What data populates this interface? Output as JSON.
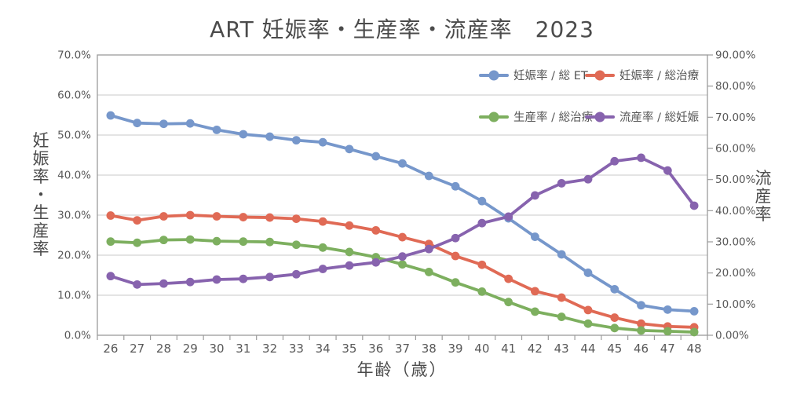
{
  "title": "ART 妊娠率・生産率・流産率　2023",
  "chart_data": {
    "type": "line",
    "title": "ART 妊娠率・生産率・流産率　2023",
    "xlabel": "年齢（歳）",
    "ylabel_left": "妊娠率・生産率",
    "ylabel_right": "流産率",
    "grid": true,
    "legend_position": "top-right-inside",
    "x": [
      26,
      27,
      28,
      29,
      30,
      31,
      32,
      33,
      34,
      35,
      36,
      37,
      38,
      39,
      40,
      41,
      42,
      43,
      44,
      45,
      46,
      47,
      48
    ],
    "x_tick_labels": [
      "26",
      "27",
      "28",
      "29",
      "30",
      "31",
      "32",
      "33",
      "34",
      "35",
      "36",
      "37",
      "38",
      "39",
      "40",
      "41",
      "42",
      "43",
      "44",
      "45",
      "46",
      "47",
      "48"
    ],
    "left_axis": {
      "min": 0,
      "max": 70,
      "tick_labels": [
        "0.0%",
        "10.0%",
        "20.0%",
        "30.0%",
        "40.0%",
        "50.0%",
        "60.0%",
        "70.0%"
      ]
    },
    "right_axis": {
      "min": 0,
      "max": 90,
      "tick_labels": [
        "0.00%",
        "10.00%",
        "20.00%",
        "30.00%",
        "40.00%",
        "50.00%",
        "60.00%",
        "70.00%",
        "80.00%",
        "90.00%"
      ]
    },
    "series": [
      {
        "name": "妊娠率 / 総 ET",
        "axis": "left",
        "color": "#7697CB",
        "values": [
          54.9,
          53.0,
          52.8,
          52.9,
          51.3,
          50.2,
          49.6,
          48.7,
          48.2,
          46.5,
          44.7,
          42.9,
          39.8,
          37.2,
          33.5,
          29.2,
          24.6,
          20.2,
          15.6,
          11.5,
          7.5,
          6.4,
          6.0
        ]
      },
      {
        "name": "妊娠率 / 総治療",
        "axis": "left",
        "color": "#E06A55",
        "values": [
          29.9,
          28.7,
          29.7,
          30.0,
          29.7,
          29.5,
          29.4,
          29.1,
          28.4,
          27.4,
          26.2,
          24.5,
          22.8,
          19.8,
          17.6,
          14.1,
          11.0,
          9.4,
          6.3,
          4.4,
          2.9,
          2.2,
          2.0
        ]
      },
      {
        "name": "生産率 / 総治療",
        "axis": "left",
        "color": "#7DAF5F",
        "values": [
          23.4,
          23.1,
          23.8,
          23.9,
          23.5,
          23.4,
          23.3,
          22.6,
          21.9,
          20.8,
          19.5,
          17.7,
          15.8,
          13.2,
          10.9,
          8.3,
          5.9,
          4.6,
          2.9,
          1.8,
          1.2,
          1.0,
          0.8
        ]
      },
      {
        "name": "流産率 / 総妊娠",
        "axis": "right",
        "color": "#8763AE",
        "values": [
          19.0,
          16.3,
          16.6,
          17.1,
          17.9,
          18.1,
          18.7,
          19.6,
          21.3,
          22.4,
          23.4,
          25.3,
          27.7,
          31.2,
          36.0,
          38.1,
          44.9,
          48.8,
          50.1,
          55.9,
          57.0,
          52.9,
          41.6
        ]
      }
    ],
    "style": {
      "grid_color": "#C9C9C9",
      "axis_color": "#9B9B9B",
      "text_color": "#595959",
      "title_color": "#4B4B4B"
    }
  }
}
